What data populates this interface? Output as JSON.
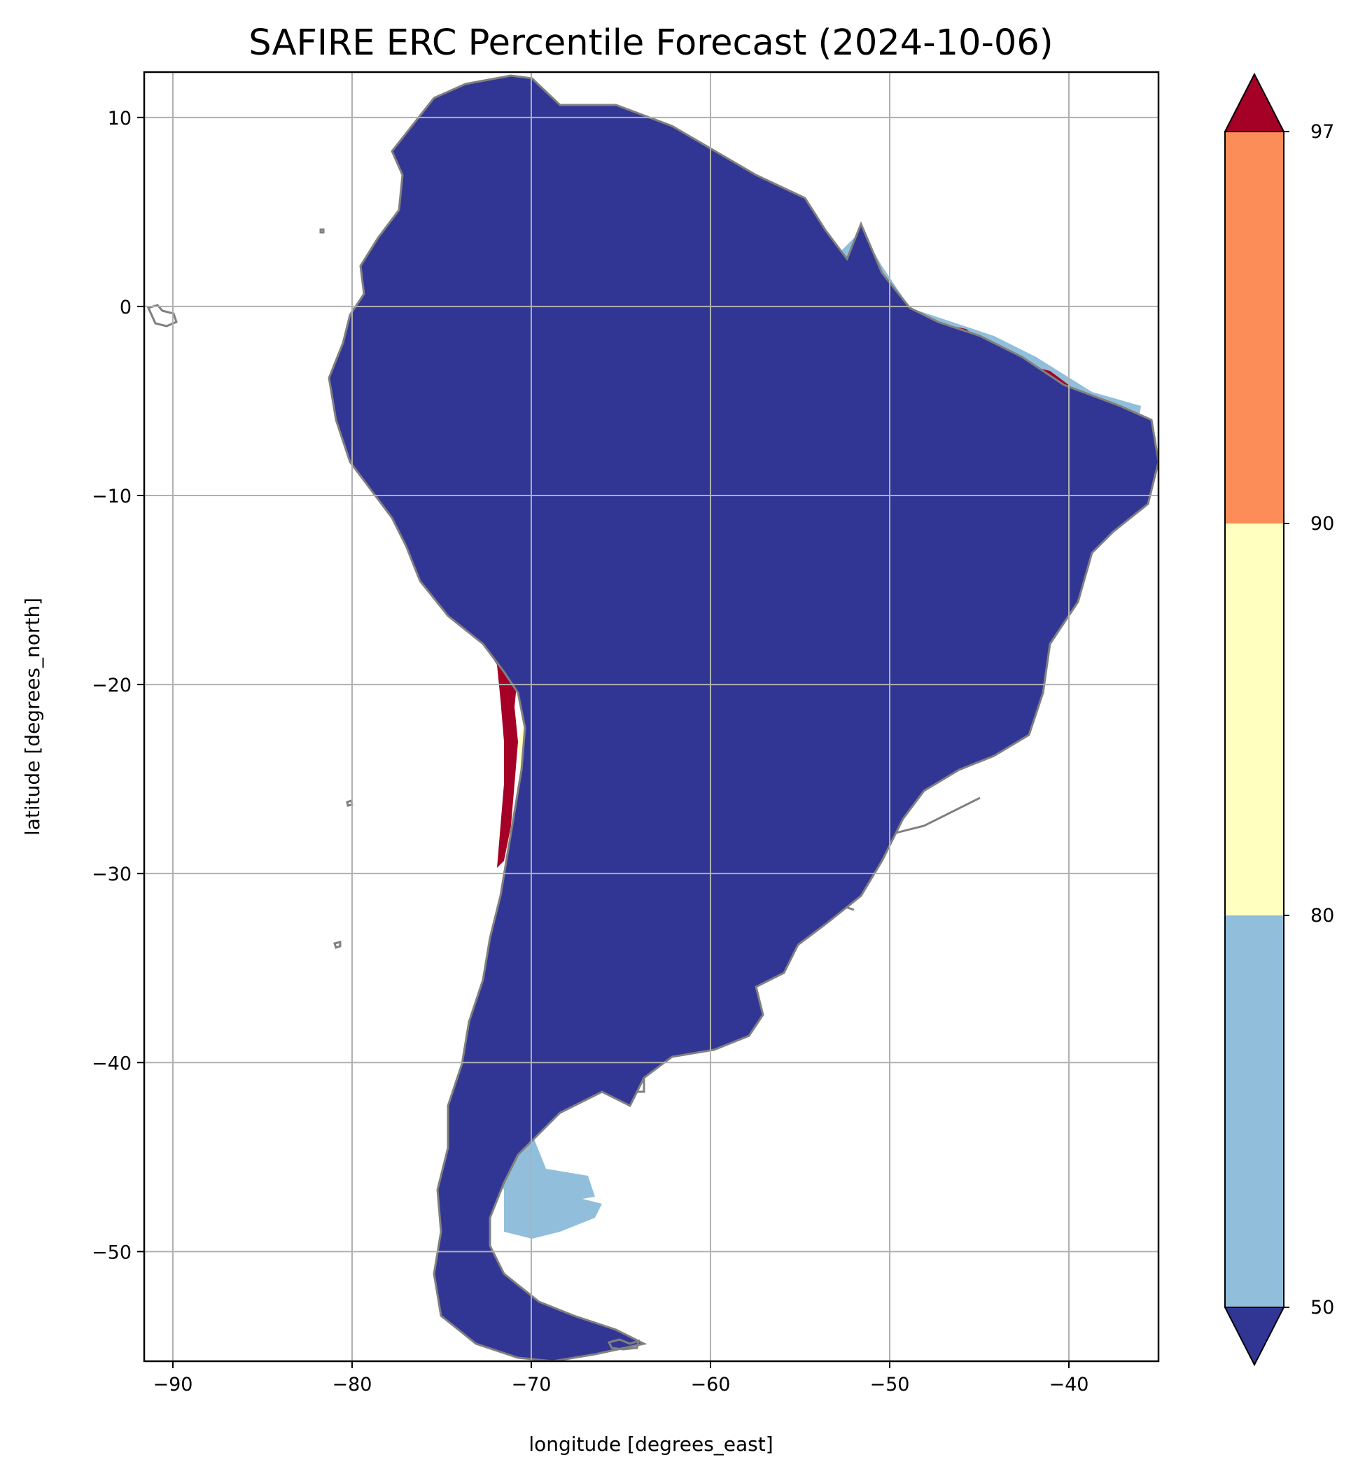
{
  "title": "SAFIRE ERC Percentile Forecast (2024-10-06)",
  "xlabel": "longitude [degrees_east]",
  "ylabel": "latitude [degrees_north]",
  "map": {
    "lon_range": [
      -91.6,
      -35.0
    ],
    "lat_range": [
      -55.8,
      12.4
    ],
    "lon_ticks": [
      -90,
      -80,
      -70,
      -60,
      -50,
      -40
    ],
    "lon_tick_labels": [
      "−90",
      "−80",
      "−70",
      "−60",
      "−50",
      "−40"
    ],
    "lat_ticks": [
      10,
      0,
      -10,
      -20,
      -30,
      -40,
      -50
    ],
    "lat_tick_labels": [
      "10",
      "0",
      "−10",
      "−20",
      "−30",
      "−40",
      "−50"
    ],
    "grid": true,
    "land_outline_color": "#808080",
    "grid_color": "#b0b0b0"
  },
  "colorbar": {
    "levels": [
      "50",
      "80",
      "90",
      "97"
    ],
    "colors": {
      "below_50": "#313695",
      "p50_80": "#91bfdb",
      "p80_90": "#ffffbf",
      "p90_97": "#fc8d59",
      "above_97": "#a50026"
    }
  }
}
